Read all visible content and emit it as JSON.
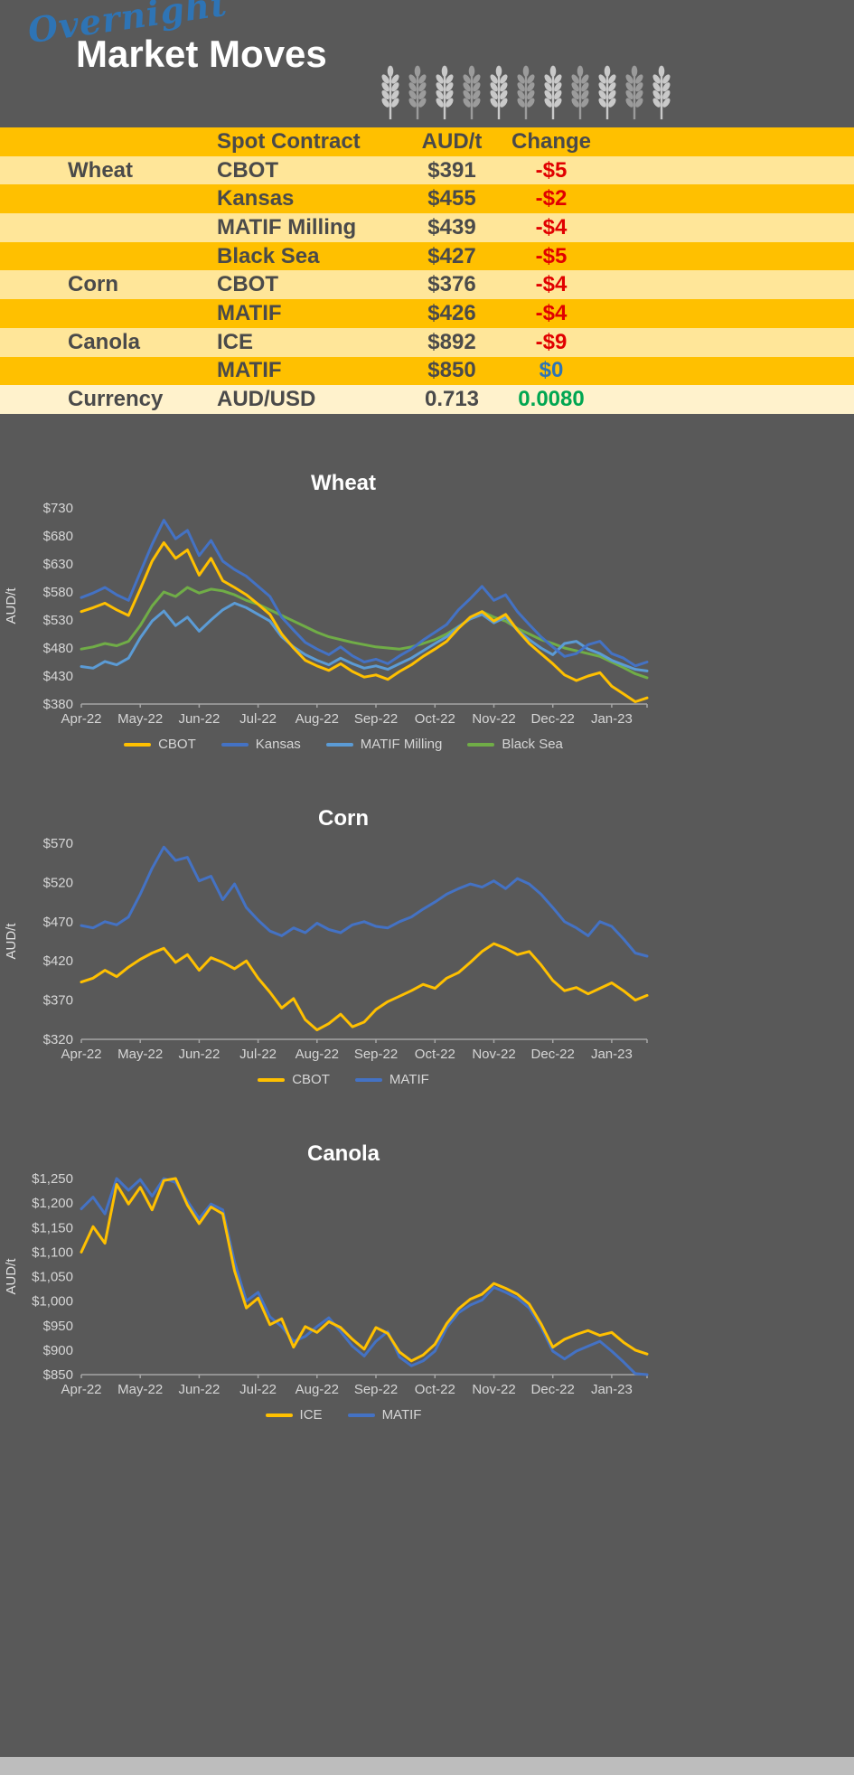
{
  "header": {
    "script_title": "Overnight",
    "main_title": "Market Moves",
    "wheat_icon": "wheat-stalk-icon",
    "wheat_icon_count": 11
  },
  "colors": {
    "background": "#595959",
    "table_gold": "#FFC000",
    "table_light": "#FFE699",
    "table_pale": "#FFF2CC",
    "change_negative": "#E10000",
    "change_neutral": "#2E75B6",
    "change_positive": "#00A651",
    "series_gold": "#FFC000",
    "series_blue": "#4472C4",
    "series_lightblue": "#5B9BD5",
    "series_green": "#70AD47"
  },
  "table": {
    "header": {
      "contract": "Spot Contract",
      "price": "AUD/t",
      "change": "Change"
    },
    "rows": [
      {
        "name": "Wheat",
        "contract": "CBOT",
        "price": "$391",
        "change": "-$5"
      },
      {
        "name": "",
        "contract": "Kansas",
        "price": "$455",
        "change": "-$2"
      },
      {
        "name": "",
        "contract": "MATIF Milling",
        "price": "$439",
        "change": "-$4"
      },
      {
        "name": "",
        "contract": "Black Sea",
        "price": "$427",
        "change": "-$5"
      },
      {
        "name": "Corn",
        "contract": "CBOT",
        "price": "$376",
        "change": "-$4"
      },
      {
        "name": "",
        "contract": "MATIF",
        "price": "$426",
        "change": "-$4"
      },
      {
        "name": "Canola",
        "contract": "ICE",
        "price": "$892",
        "change": "-$9"
      },
      {
        "name": "",
        "contract": "MATIF",
        "price": "$850",
        "change": "$0"
      },
      {
        "name": "Currency",
        "contract": "AUD/USD",
        "price": "0.713",
        "change": "0.0080"
      }
    ]
  },
  "chart_data": [
    {
      "type": "line",
      "title": "Wheat",
      "ylabel": "AUD/t",
      "ylim": [
        380,
        730
      ],
      "ytick_values": [
        380,
        430,
        480,
        530,
        580,
        630,
        680,
        730
      ],
      "ytick_labels": [
        "$380",
        "$430",
        "$480",
        "$530",
        "$580",
        "$630",
        "$680",
        "$730"
      ],
      "x_labels": [
        "Apr-22",
        "May-22",
        "Jun-22",
        "Jul-22",
        "Aug-22",
        "Sep-22",
        "Oct-22",
        "Nov-22",
        "Dec-22",
        "Jan-23"
      ],
      "x_domain": [
        0,
        9.6
      ],
      "x_step": 0.2,
      "grid": false,
      "legend_position": "bottom",
      "series": [
        {
          "name": "CBOT",
          "color": "#FFC000",
          "values": [
            545,
            552,
            560,
            548,
            538,
            585,
            635,
            668,
            640,
            655,
            610,
            640,
            600,
            588,
            575,
            558,
            540,
            505,
            480,
            458,
            448,
            440,
            452,
            438,
            428,
            432,
            424,
            438,
            450,
            465,
            478,
            492,
            515,
            535,
            545,
            528,
            540,
            512,
            488,
            470,
            452,
            432,
            422,
            430,
            436,
            412,
            398,
            384,
            391
          ]
        },
        {
          "name": "Kansas",
          "color": "#4472C4",
          "values": [
            570,
            578,
            588,
            575,
            565,
            615,
            665,
            708,
            675,
            690,
            645,
            672,
            635,
            620,
            608,
            590,
            572,
            535,
            512,
            490,
            478,
            468,
            482,
            466,
            455,
            460,
            452,
            466,
            478,
            494,
            508,
            522,
            548,
            568,
            590,
            565,
            575,
            545,
            522,
            500,
            482,
            465,
            470,
            486,
            492,
            470,
            462,
            448,
            455
          ]
        },
        {
          "name": "MATIF Milling",
          "color": "#5B9BD5",
          "values": [
            447,
            444,
            456,
            450,
            462,
            498,
            528,
            546,
            520,
            535,
            510,
            530,
            548,
            560,
            552,
            540,
            528,
            500,
            482,
            468,
            458,
            450,
            462,
            452,
            444,
            448,
            442,
            452,
            462,
            475,
            488,
            500,
            518,
            532,
            540,
            525,
            535,
            512,
            495,
            480,
            468,
            488,
            492,
            478,
            470,
            458,
            450,
            442,
            439
          ]
        },
        {
          "name": "Black Sea",
          "color": "#70AD47",
          "values": [
            478,
            482,
            488,
            484,
            492,
            520,
            555,
            580,
            572,
            588,
            578,
            585,
            582,
            575,
            565,
            558,
            548,
            538,
            528,
            518,
            508,
            500,
            495,
            490,
            486,
            482,
            480,
            478,
            482,
            488,
            495,
            505,
            518,
            532,
            545,
            535,
            528,
            515,
            505,
            495,
            488,
            480,
            475,
            470,
            465,
            455,
            445,
            434,
            427
          ]
        }
      ]
    },
    {
      "type": "line",
      "title": "Corn",
      "ylabel": "AUD/t",
      "ylim": [
        320,
        570
      ],
      "ytick_values": [
        320,
        370,
        420,
        470,
        520,
        570
      ],
      "ytick_labels": [
        "$320",
        "$370",
        "$420",
        "$470",
        "$520",
        "$570"
      ],
      "x_labels": [
        "Apr-22",
        "May-22",
        "Jun-22",
        "Jul-22",
        "Aug-22",
        "Sep-22",
        "Oct-22",
        "Nov-22",
        "Dec-22",
        "Jan-23"
      ],
      "x_domain": [
        0,
        9.6
      ],
      "x_step": 0.2,
      "grid": false,
      "legend_position": "bottom",
      "series": [
        {
          "name": "CBOT",
          "color": "#FFC000",
          "values": [
            393,
            398,
            408,
            400,
            412,
            422,
            430,
            436,
            418,
            428,
            408,
            424,
            418,
            410,
            420,
            398,
            380,
            360,
            372,
            345,
            332,
            340,
            352,
            336,
            342,
            358,
            368,
            375,
            382,
            390,
            385,
            398,
            405,
            418,
            432,
            442,
            436,
            428,
            432,
            415,
            395,
            382,
            386,
            378,
            385,
            392,
            382,
            370,
            376
          ]
        },
        {
          "name": "MATIF",
          "color": "#4472C4",
          "values": [
            465,
            462,
            470,
            466,
            476,
            505,
            538,
            565,
            548,
            552,
            522,
            528,
            498,
            518,
            488,
            472,
            458,
            452,
            462,
            456,
            468,
            460,
            456,
            466,
            470,
            464,
            462,
            470,
            476,
            486,
            495,
            505,
            512,
            518,
            514,
            522,
            512,
            525,
            518,
            505,
            488,
            470,
            462,
            452,
            470,
            464,
            448,
            430,
            426
          ]
        }
      ]
    },
    {
      "type": "line",
      "title": "Canola",
      "ylabel": "AUD/t",
      "ylim": [
        850,
        1250
      ],
      "ytick_values": [
        850,
        900,
        950,
        1000,
        1050,
        1100,
        1150,
        1200,
        1250
      ],
      "ytick_labels": [
        "$850",
        "$900",
        "$950",
        "$1,000",
        "$1,050",
        "$1,100",
        "$1,150",
        "$1,200",
        "$1,250"
      ],
      "x_labels": [
        "Apr-22",
        "May-22",
        "Jun-22",
        "Jul-22",
        "Aug-22",
        "Sep-22",
        "Oct-22",
        "Nov-22",
        "Dec-22",
        "Jan-23"
      ],
      "x_domain": [
        0,
        9.6
      ],
      "x_step": 0.2,
      "grid": false,
      "legend_position": "bottom",
      "series": [
        {
          "name": "ICE",
          "color": "#FFC000",
          "values": [
            1100,
            1152,
            1118,
            1238,
            1198,
            1232,
            1186,
            1246,
            1250,
            1196,
            1158,
            1192,
            1178,
            1062,
            986,
            1006,
            952,
            964,
            906,
            948,
            936,
            958,
            946,
            922,
            902,
            946,
            934,
            896,
            878,
            890,
            912,
            954,
            984,
            1004,
            1014,
            1036,
            1026,
            1014,
            994,
            954,
            906,
            922,
            932,
            940,
            930,
            936,
            916,
            900,
            892
          ]
        },
        {
          "name": "MATIF",
          "color": "#4472C4",
          "values": [
            1188,
            1212,
            1178,
            1250,
            1226,
            1248,
            1214,
            1250,
            1242,
            1204,
            1168,
            1198,
            1186,
            1080,
            1000,
            1018,
            968,
            948,
            918,
            928,
            948,
            966,
            938,
            908,
            888,
            918,
            938,
            886,
            868,
            878,
            898,
            946,
            976,
            992,
            1002,
            1028,
            1018,
            1006,
            986,
            948,
            898,
            882,
            898,
            908,
            918,
            898,
            876,
            852,
            850
          ]
        }
      ]
    }
  ]
}
